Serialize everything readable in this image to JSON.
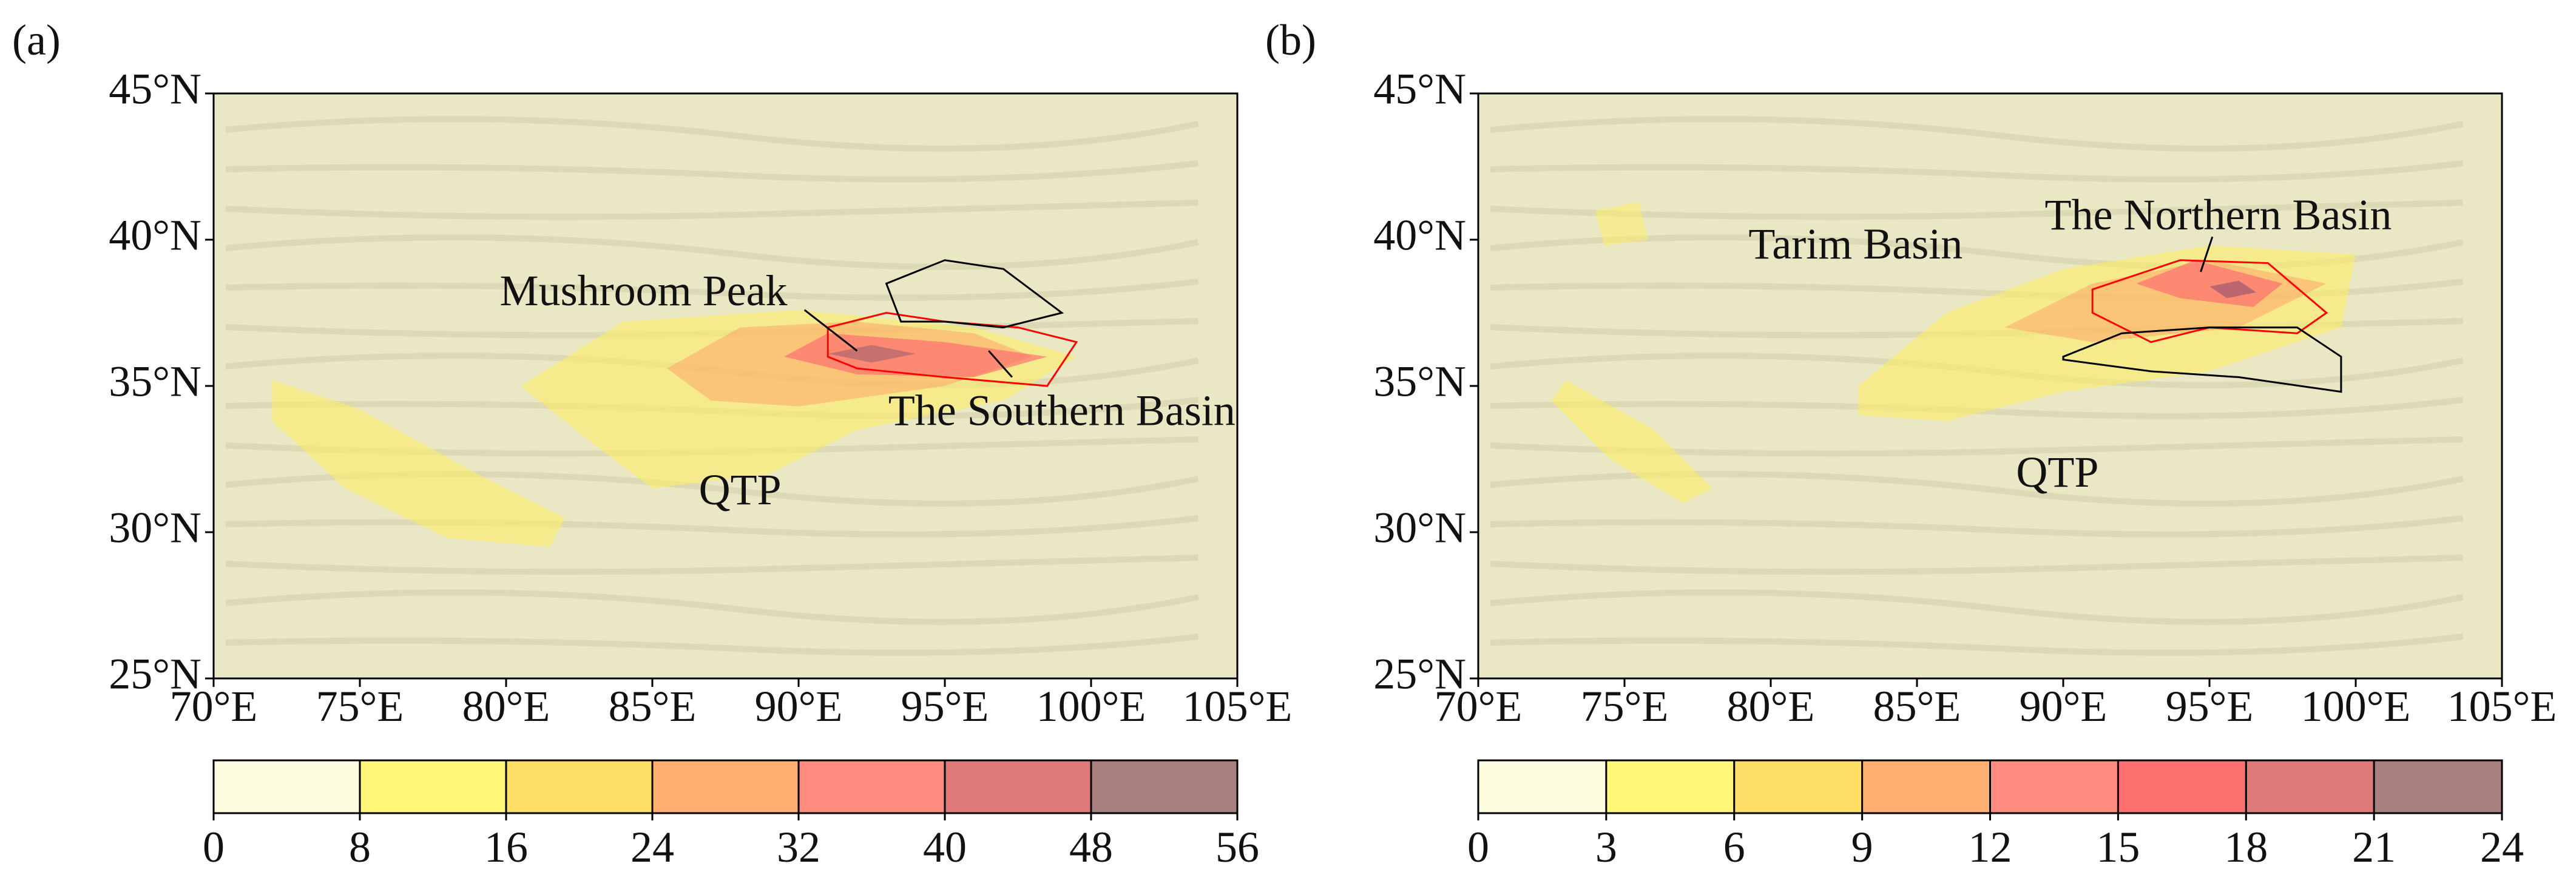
{
  "panels": [
    {
      "label": "(a)",
      "lat_ticks": [
        {
          "value": 45,
          "label": "45°N"
        },
        {
          "value": 40,
          "label": "40°N"
        },
        {
          "value": 35,
          "label": "35°N"
        },
        {
          "value": 30,
          "label": "30°N"
        },
        {
          "value": 25,
          "label": "25°N"
        }
      ],
      "lon_ticks": [
        {
          "value": 70,
          "label": "70°E"
        },
        {
          "value": 75,
          "label": "75°E"
        },
        {
          "value": 80,
          "label": "80°E"
        },
        {
          "value": 85,
          "label": "85°E"
        },
        {
          "value": 90,
          "label": "90°E"
        },
        {
          "value": 95,
          "label": "95°E"
        },
        {
          "value": 100,
          "label": "100°E"
        },
        {
          "value": 105,
          "label": "105°E"
        }
      ],
      "annotations": [
        "Mushroom Peak",
        "The Southern Basin",
        "QTP"
      ],
      "colorbar": {
        "ticks": [
          0,
          8,
          16,
          24,
          32,
          40,
          48,
          56
        ],
        "colors": [
          "#fffde0",
          "#fff77a",
          "#ffe066",
          "#ffb070",
          "#ff8a80",
          "#e07a7a",
          "#a88080"
        ]
      }
    },
    {
      "label": "(b)",
      "lat_ticks": [
        {
          "value": 45,
          "label": "45°N"
        },
        {
          "value": 40,
          "label": "40°N"
        },
        {
          "value": 35,
          "label": "35°N"
        },
        {
          "value": 30,
          "label": "30°N"
        },
        {
          "value": 25,
          "label": "25°N"
        }
      ],
      "lon_ticks": [
        {
          "value": 70,
          "label": "70°E"
        },
        {
          "value": 75,
          "label": "75°E"
        },
        {
          "value": 80,
          "label": "80°E"
        },
        {
          "value": 85,
          "label": "85°E"
        },
        {
          "value": 90,
          "label": "90°E"
        },
        {
          "value": 95,
          "label": "95°E"
        },
        {
          "value": 100,
          "label": "100°E"
        },
        {
          "value": 105,
          "label": "105°E"
        }
      ],
      "annotations": [
        "Tarim Basin",
        "The Northern Basin",
        "QTP"
      ],
      "colorbar": {
        "ticks": [
          0,
          3,
          6,
          9,
          12,
          15,
          18,
          21,
          24
        ],
        "colors": [
          "#fffde0",
          "#fff77a",
          "#ffe066",
          "#ffb070",
          "#ff8a80",
          "#ff7070",
          "#e07a7a",
          "#a88080"
        ]
      }
    }
  ]
}
